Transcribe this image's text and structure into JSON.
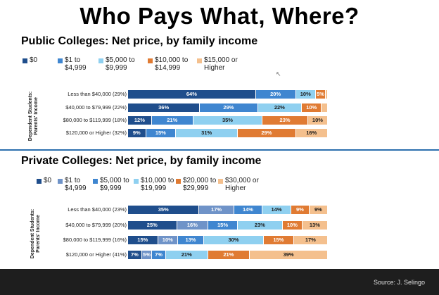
{
  "page_title": "Who Pays What, Where?",
  "source": "Source: J. Selingo",
  "axis_note": "Dependent Students:\nParents' Income",
  "chart_data": [
    {
      "type": "bar",
      "orientation": "horizontal-stacked",
      "title": "Public Colleges: Net price, by family income",
      "legend": [
        "$0",
        "$1 to\n$4,999",
        "$5,000 to\n$9,999",
        "$10,000 to\n$14,999",
        "$15,000 or\nHigher"
      ],
      "colors": [
        "#1f4e8c",
        "#3f86d0",
        "#8fd0f0",
        "#e07b33",
        "#f4c08e"
      ],
      "categories": [
        "Less than $40,000 (29%)",
        "$40,000 to $79,999 (22%)",
        "$80,000 to $119,999 (18%)",
        "$120,000 or Higher (32%)"
      ],
      "series": [
        {
          "name": "$0",
          "values": [
            64,
            36,
            12,
            9
          ]
        },
        {
          "name": "$1 to $4,999",
          "values": [
            20,
            29,
            21,
            15
          ]
        },
        {
          "name": "$5,000 to $9,999",
          "values": [
            10,
            22,
            35,
            31
          ]
        },
        {
          "name": "$10,000 to $14,999",
          "values": [
            5,
            10,
            23,
            29
          ]
        },
        {
          "name": "$15,000 or Higher",
          "values": [
            1,
            3,
            10,
            16
          ]
        }
      ],
      "labels": [
        [
          "64%",
          "20%",
          "10%",
          "5%",
          ""
        ],
        [
          "36%",
          "29%",
          "22%",
          "10%",
          ""
        ],
        [
          "12%",
          "21%",
          "35%",
          "23%",
          "10%"
        ],
        [
          "9%",
          "15%",
          "31%",
          "29%",
          "16%"
        ]
      ]
    },
    {
      "type": "bar",
      "orientation": "horizontal-stacked",
      "title": "Private Colleges: Net price, by family income",
      "legend": [
        "$0",
        "$1 to\n$4,999",
        "$5,000 to\n$9,999",
        "$10,000 to\n$19,999",
        "$20,000 to\n$29,999",
        "$30,000 or\nHigher"
      ],
      "colors": [
        "#1f4e8c",
        "#6f93c8",
        "#3f86d0",
        "#8fd0f0",
        "#e07b33",
        "#f4c08e"
      ],
      "categories": [
        "Less than $40,000 (23%)",
        "$40,000 to $79,999 (20%)",
        "$80,000 to $119,999 (16%)",
        "$120,000 or Higher (41%)"
      ],
      "series": [
        {
          "name": "$0",
          "values": [
            35,
            25,
            15,
            7
          ]
        },
        {
          "name": "$1 to $4,999",
          "values": [
            17,
            16,
            10,
            5
          ]
        },
        {
          "name": "$5,000 to $9,999",
          "values": [
            14,
            15,
            13,
            7
          ]
        },
        {
          "name": "$10,000 to $19,999",
          "values": [
            14,
            23,
            30,
            21
          ]
        },
        {
          "name": "$20,000 to $29,999",
          "values": [
            9,
            10,
            15,
            21
          ]
        },
        {
          "name": "$30,000 or Higher",
          "values": [
            9,
            13,
            17,
            39
          ]
        }
      ],
      "labels": [
        [
          "35%",
          "17%",
          "14%",
          "14%",
          "9%",
          "9%"
        ],
        [
          "25%",
          "16%",
          "15%",
          "23%",
          "10%",
          "13%"
        ],
        [
          "15%",
          "10%",
          "13%",
          "30%",
          "15%",
          "17%"
        ],
        [
          "7%",
          "5%",
          "7%",
          "21%",
          "21%",
          "39%"
        ]
      ]
    }
  ]
}
